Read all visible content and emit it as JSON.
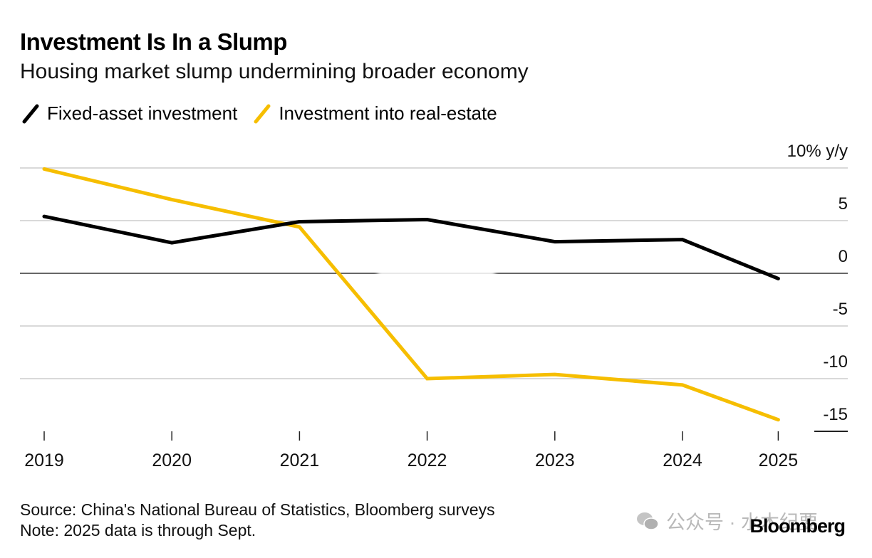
{
  "chart_data": {
    "type": "line",
    "title": "Investment Is In a Slump",
    "subtitle": "Housing market slump undermining broader economy",
    "xlabel": "",
    "ylabel": "% y/y",
    "x": [
      2019,
      2020,
      2021,
      2022,
      2023,
      2024,
      2025
    ],
    "x_positions": [
      0,
      1,
      2,
      3,
      4,
      5,
      5.75
    ],
    "categories": [
      "2019",
      "2020",
      "2021",
      "2022",
      "2023",
      "2024",
      "2025"
    ],
    "ylim": [
      -15,
      10
    ],
    "yticks": [
      10,
      5,
      0,
      -5,
      -10,
      -15
    ],
    "ytick_labels": [
      "10% y/y",
      "5",
      "0",
      "-5",
      "-10",
      "-15"
    ],
    "grid": true,
    "legend_position": "top-left",
    "series": [
      {
        "name": "Fixed-asset investment",
        "color": "#000000",
        "values": [
          5.4,
          2.9,
          4.9,
          5.1,
          3.0,
          3.2,
          -0.5
        ]
      },
      {
        "name": "Investment into real-estate",
        "color": "#F6BE00",
        "values": [
          9.9,
          7.0,
          4.4,
          -10.0,
          -9.6,
          -10.6,
          -13.9
        ]
      }
    ]
  },
  "footer": {
    "source": "Source: China's National Bureau of Statistics, Bloomberg surveys",
    "note": "Note: 2025 data is through Sept."
  },
  "brand": "Bloomberg",
  "watermark": "公众号 · 水木纪要",
  "colors": {
    "grid": "#d9d9d9",
    "zero_line": "#333333",
    "axis_text": "#111111"
  }
}
